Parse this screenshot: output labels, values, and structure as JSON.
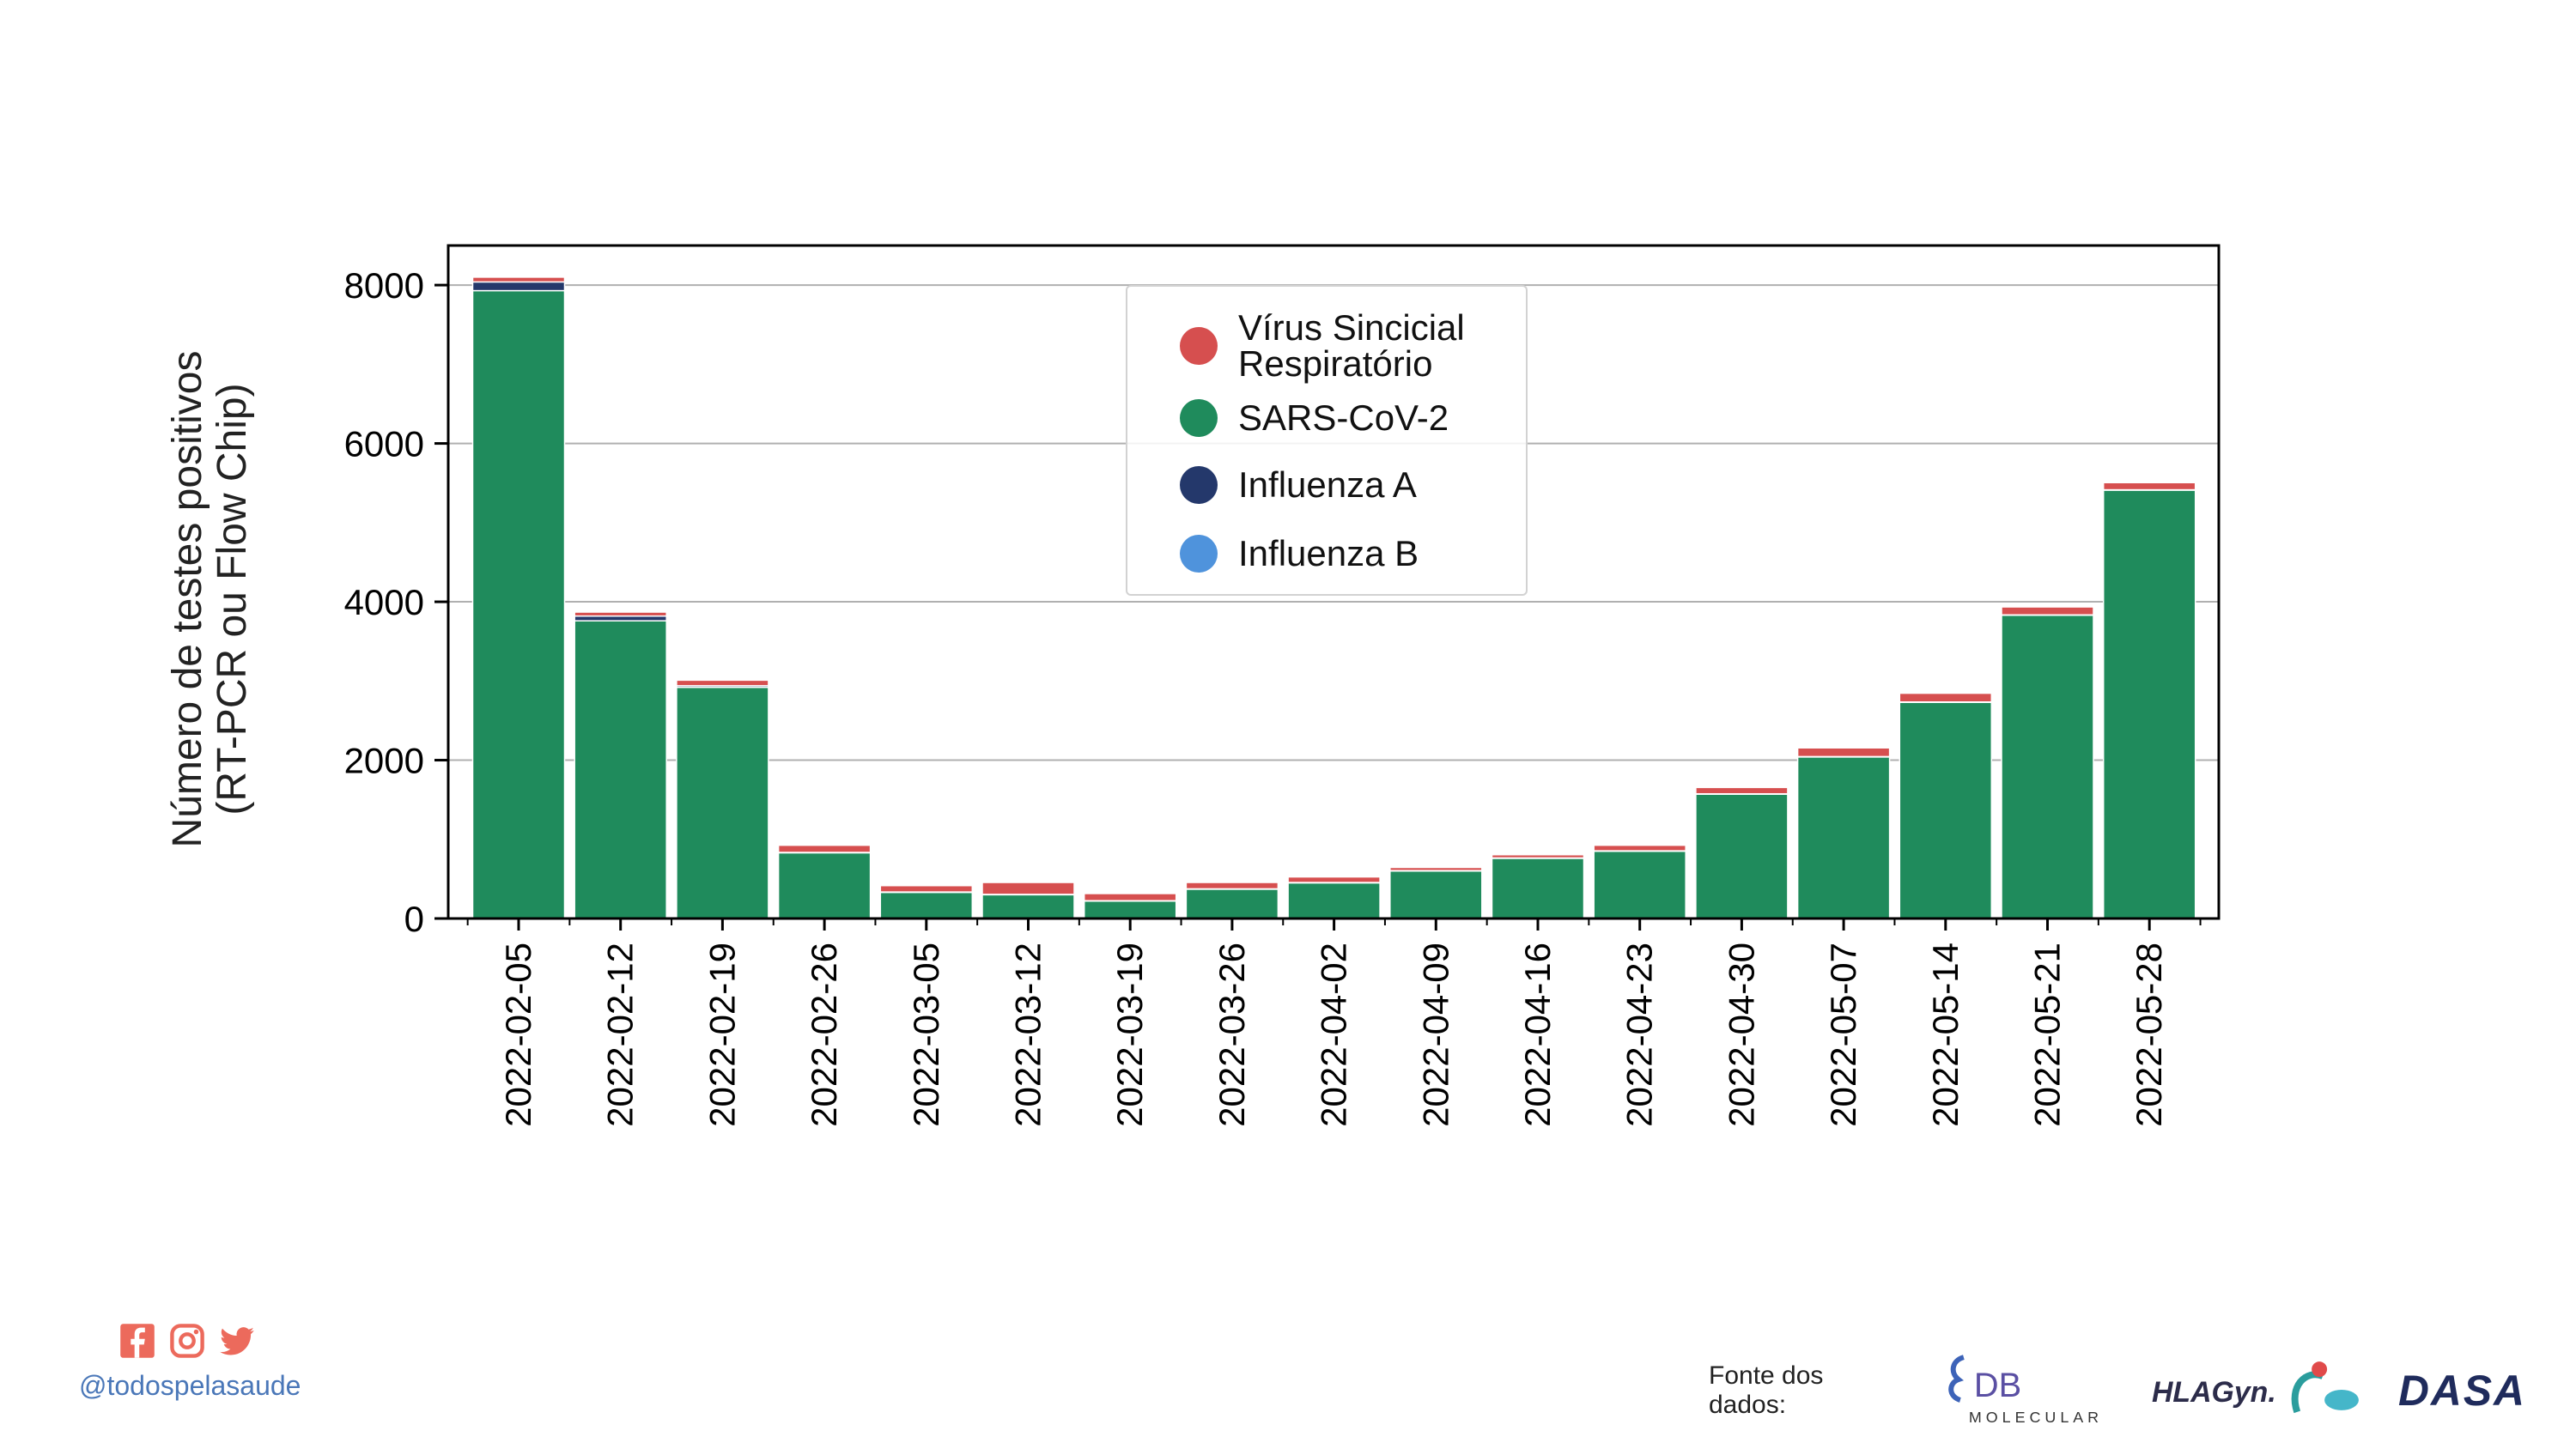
{
  "chart_data": {
    "type": "bar",
    "stacked": true,
    "categories": [
      "2022-02-05",
      "2022-02-12",
      "2022-02-19",
      "2022-02-26",
      "2022-03-05",
      "2022-03-12",
      "2022-03-19",
      "2022-03-26",
      "2022-04-02",
      "2022-04-09",
      "2022-04-16",
      "2022-04-23",
      "2022-04-30",
      "2022-05-07",
      "2022-05-14",
      "2022-05-21",
      "2022-05-28"
    ],
    "series": [
      {
        "name": "Influenza B",
        "color": "#4f93dc",
        "values": [
          0,
          0,
          0,
          0,
          0,
          0,
          0,
          0,
          0,
          0,
          0,
          0,
          0,
          0,
          0,
          0,
          0
        ]
      },
      {
        "name": "SARS-CoV-2",
        "color": "#1f8b5c",
        "values": [
          7930,
          3760,
          2920,
          830,
          330,
          300,
          220,
          370,
          450,
          600,
          760,
          850,
          1570,
          2040,
          2730,
          3830,
          5410
        ]
      },
      {
        "name": "Influenza A",
        "color": "#24386b",
        "values": [
          110,
          60,
          20,
          5,
          5,
          5,
          5,
          5,
          5,
          5,
          5,
          5,
          5,
          5,
          5,
          5,
          5
        ]
      },
      {
        "name": "Vírus Sincicial\nRespiratório",
        "color": "#d64f4f",
        "values": [
          60,
          50,
          70,
          90,
          80,
          150,
          90,
          80,
          70,
          40,
          40,
          70,
          80,
          110,
          110,
          100,
          90
        ]
      }
    ],
    "legend_order": [
      "Vírus Sincicial\nRespiratório",
      "SARS-CoV-2",
      "Influenza A",
      "Influenza B"
    ],
    "legend_placement": "upper-center",
    "xlabel": "",
    "ylabel": "Número de testes positivos\n(RT-PCR ou Flow Chip)",
    "ylim": [
      0,
      8500
    ],
    "yticks": [
      0,
      2000,
      4000,
      6000,
      8000
    ],
    "grid": "horizontal"
  },
  "footer": {
    "handle": "@todospelasaude",
    "source_label": "Fonte dos dados:",
    "logo_db": "DB",
    "logo_db_sub": "MOLECULAR",
    "logo_hlagyn": "HLAGyn.",
    "logo_dasa": "DASA",
    "social": [
      "facebook-icon",
      "instagram-icon",
      "twitter-icon"
    ],
    "social_color": "#ec6a5c"
  }
}
